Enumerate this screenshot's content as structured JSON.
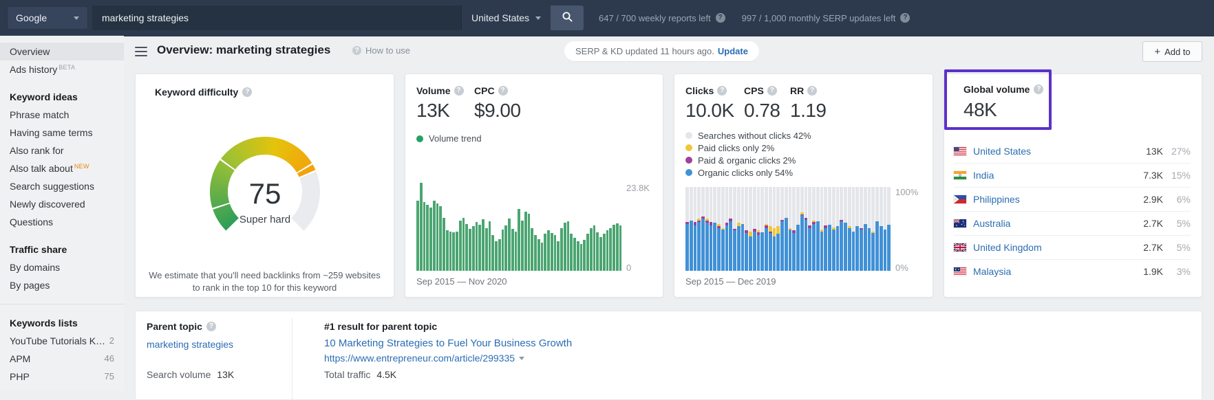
{
  "topbar": {
    "engine": "Google",
    "query": "marketing strategies",
    "country": "United States",
    "weekly_reports_left": "647 / 700 weekly reports left",
    "monthly_serp_updates_left": "997 / 1,000 monthly SERP updates left"
  },
  "sidebar": {
    "top_items": [
      {
        "label": "Overview",
        "active": true
      },
      {
        "label": "Ads history",
        "badge": "BETA"
      }
    ],
    "groups": [
      {
        "title": "Keyword ideas",
        "items": [
          {
            "label": "Phrase match"
          },
          {
            "label": "Having same terms"
          },
          {
            "label": "Also rank for"
          },
          {
            "label": "Also talk about",
            "badge": "NEW"
          },
          {
            "label": "Search suggestions"
          },
          {
            "label": "Newly discovered"
          },
          {
            "label": "Questions"
          }
        ]
      },
      {
        "title": "Traffic share",
        "items": [
          {
            "label": "By domains"
          },
          {
            "label": "By pages"
          }
        ]
      },
      {
        "title": "Keywords lists",
        "divider_before": true,
        "items": [
          {
            "label": "YouTube Tutorials K…",
            "count": "2"
          },
          {
            "label": "APM",
            "count": "46"
          },
          {
            "label": "PHP",
            "count": "75"
          }
        ]
      }
    ]
  },
  "header": {
    "title": "Overview: marketing strategies",
    "how_to_use": "How to use",
    "serp_status": "SERP & KD updated 11 hours ago.",
    "update_label": "Update",
    "add_to_label": "Add to"
  },
  "kd_card": {
    "title": "Keyword difficulty",
    "gauge": {
      "value": "75",
      "max": 100,
      "label": "Super hard",
      "segment_colors": [
        "#2f9e58",
        "#9dc133",
        "#e4c30c",
        "#f59f0a"
      ],
      "track_color": "#e9ebee",
      "gap_marks": [
        10,
        30,
        72,
        75
      ]
    },
    "note_line1": "We estimate that you'll need backlinks from ~259 websites",
    "note_line2": "to rank in the top 10 for this keyword"
  },
  "volume_card": {
    "metrics": [
      {
        "label": "Volume",
        "value": "13K"
      },
      {
        "label": "CPC",
        "value": "$9.00"
      }
    ],
    "legend_label": "Volume trend",
    "legend_color": "#23a164",
    "chart": {
      "type": "bar",
      "bar_color": "#4ba571",
      "y_max": 23.8,
      "y_top_label": "23.8K",
      "y_bottom_label": "0",
      "x_label": "Sep 2015 — Nov 2020",
      "values_monthly_K": [
        19.0,
        23.8,
        18.6,
        17.8,
        17.2,
        19.0,
        18.2,
        17.4,
        14.4,
        11.0,
        10.6,
        10.4,
        10.6,
        13.6,
        14.4,
        12.6,
        11.4,
        12.0,
        13.2,
        12.4,
        14.0,
        11.6,
        13.4,
        9.6,
        8.0,
        8.6,
        11.2,
        12.2,
        14.2,
        11.4,
        10.6,
        16.8,
        13.6,
        16.0,
        15.4,
        11.6,
        9.6,
        8.6,
        7.6,
        10.0,
        11.0,
        10.2,
        9.6,
        8.0,
        11.6,
        13.0,
        13.4,
        10.0,
        9.0,
        8.0,
        7.2,
        8.4,
        10.0,
        11.6,
        12.2,
        10.4,
        9.2,
        10.0,
        11.0,
        11.6,
        12.4,
        12.8,
        12.2
      ]
    }
  },
  "clicks_card": {
    "metrics": [
      {
        "label": "Clicks",
        "value": "10.0K"
      },
      {
        "label": "CPS",
        "value": "0.78"
      },
      {
        "label": "RR",
        "value": "1.19"
      }
    ],
    "legend": [
      {
        "label": "Searches without clicks 42%",
        "color": "#e4e6e9"
      },
      {
        "label": "Paid clicks only 2%",
        "color": "#efc63c"
      },
      {
        "label": "Paid & organic clicks 2%",
        "color": "#a0409a"
      },
      {
        "label": "Organic clicks only 54%",
        "color": "#4191d6"
      }
    ],
    "chart": {
      "type": "stacked-bar-percent",
      "y_top_label": "100%",
      "y_bottom_label": "0%",
      "x_label": "Sep 2015 — Dec 2019",
      "colors": {
        "organic": "#4191d6",
        "paid": "#efc63c",
        "paid_and_organic": "#a0409a",
        "no_clicks": "#e4e6e9"
      },
      "bars_organic_paid_both_pct": [
        [
          56,
          0,
          2
        ],
        [
          60,
          0,
          0
        ],
        [
          54,
          0,
          4
        ],
        [
          58,
          2,
          2
        ],
        [
          62,
          0,
          3
        ],
        [
          57,
          2,
          3
        ],
        [
          54,
          0,
          4
        ],
        [
          57,
          0,
          0
        ],
        [
          51,
          3,
          2
        ],
        [
          49,
          2,
          0
        ],
        [
          54,
          0,
          3
        ],
        [
          59,
          0,
          3
        ],
        [
          48,
          0,
          2
        ],
        [
          53,
          4,
          0
        ],
        [
          56,
          0,
          0
        ],
        [
          45,
          0,
          3
        ],
        [
          41,
          6,
          0
        ],
        [
          47,
          0,
          3
        ],
        [
          43,
          2,
          3
        ],
        [
          46,
          0,
          0
        ],
        [
          51,
          2,
          3
        ],
        [
          45,
          6,
          2
        ],
        [
          41,
          10,
          0
        ],
        [
          44,
          9,
          0
        ],
        [
          59,
          0,
          2
        ],
        [
          63,
          0,
          0
        ],
        [
          49,
          2,
          0
        ],
        [
          45,
          0,
          3
        ],
        [
          55,
          0,
          0
        ],
        [
          66,
          3,
          1
        ],
        [
          61,
          0,
          2
        ],
        [
          51,
          0,
          3
        ],
        [
          56,
          2,
          2
        ],
        [
          59,
          0,
          0
        ],
        [
          47,
          2,
          0
        ],
        [
          51,
          0,
          3
        ],
        [
          55,
          0,
          0
        ],
        [
          49,
          3,
          0
        ],
        [
          53,
          0,
          0
        ],
        [
          59,
          0,
          2
        ],
        [
          57,
          0,
          0
        ],
        [
          51,
          2,
          0
        ],
        [
          47,
          0,
          0
        ],
        [
          53,
          0,
          0
        ],
        [
          49,
          0,
          2
        ],
        [
          56,
          0,
          0
        ],
        [
          51,
          0,
          0
        ],
        [
          45,
          2,
          0
        ],
        [
          59,
          0,
          0
        ],
        [
          53,
          0,
          0
        ],
        [
          49,
          0,
          0
        ],
        [
          55,
          0,
          0
        ]
      ]
    }
  },
  "global_card": {
    "title": "Global volume",
    "value": "48K",
    "highlight_color": "#5b30c9",
    "countries": [
      {
        "flag": "us",
        "name": "United States",
        "volume": "13K",
        "share": "27%"
      },
      {
        "flag": "in",
        "name": "India",
        "volume": "7.3K",
        "share": "15%"
      },
      {
        "flag": "ph",
        "name": "Philippines",
        "volume": "2.9K",
        "share": "6%"
      },
      {
        "flag": "au",
        "name": "Australia",
        "volume": "2.7K",
        "share": "5%"
      },
      {
        "flag": "gb",
        "name": "United Kingdom",
        "volume": "2.7K",
        "share": "5%"
      },
      {
        "flag": "my",
        "name": "Malaysia",
        "volume": "1.9K",
        "share": "3%"
      }
    ]
  },
  "bottom_card": {
    "parent_topic": {
      "title": "Parent topic",
      "keyword": "marketing strategies",
      "volume_label": "Search volume",
      "volume_value": "13K"
    },
    "top_result": {
      "title": "#1 result for parent topic",
      "link_text": "10 Marketing Strategies to Fuel Your Business Growth",
      "url": "https://www.entrepreneur.com/article/299335",
      "traffic_label": "Total traffic",
      "traffic_value": "4.5K"
    }
  }
}
